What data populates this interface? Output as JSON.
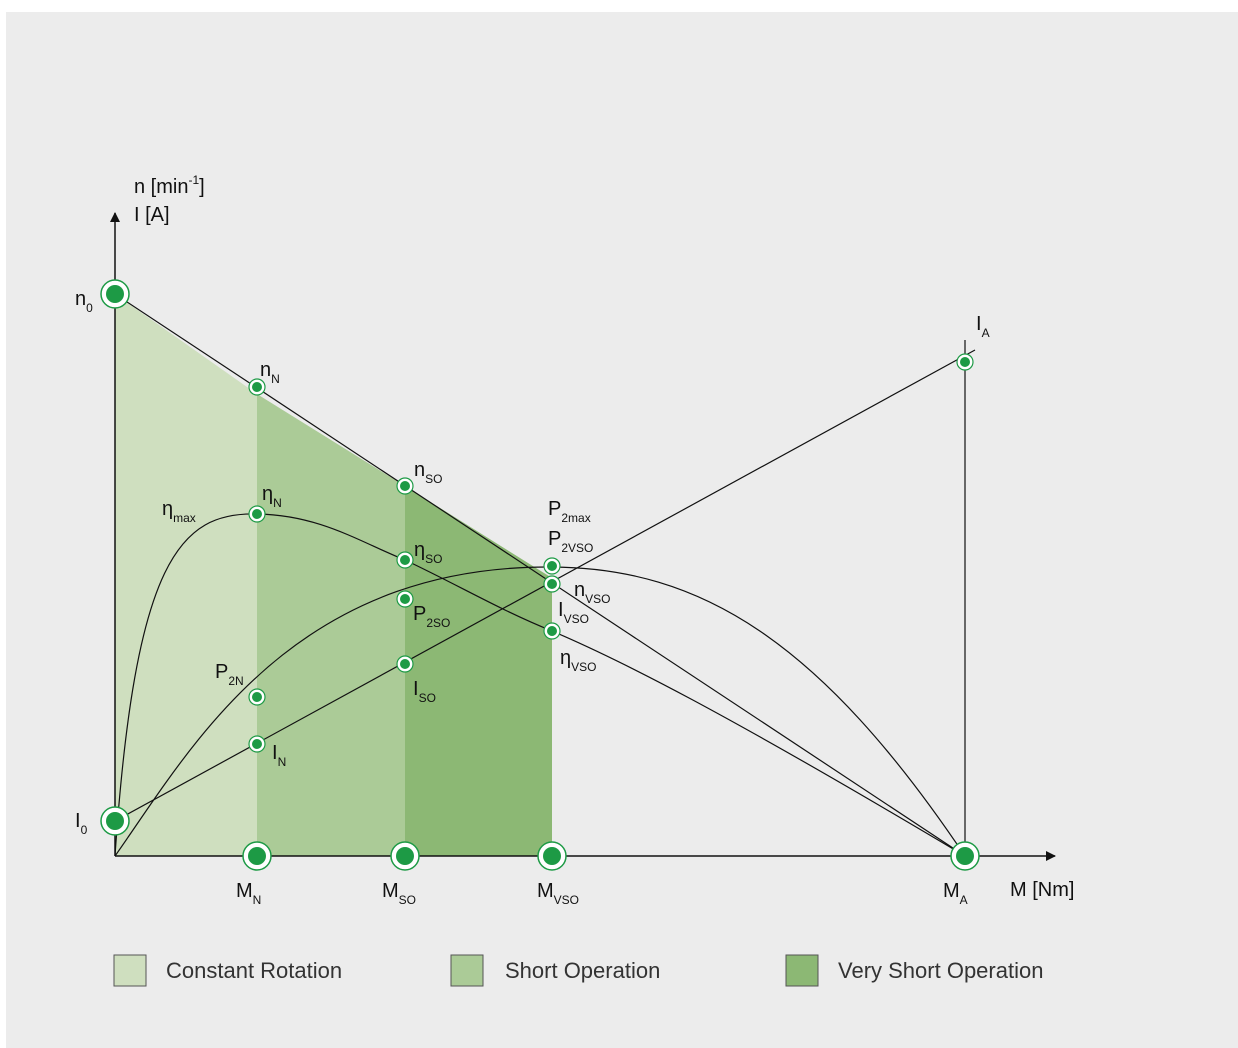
{
  "axes": {
    "y_title_line1": "n [min",
    "y_title_exp": "-1",
    "y_title_close": "]",
    "y_title_line2": "I [A]",
    "x_title": "M [Nm]"
  },
  "labels": {
    "n0": {
      "main": "n",
      "sub": "0"
    },
    "nN": {
      "main": "n",
      "sub": "N"
    },
    "nSO": {
      "main": "n",
      "sub": "SO"
    },
    "nVSO": {
      "main": "n",
      "sub": "VSO"
    },
    "eta_max": {
      "main": "η",
      "sub": "max"
    },
    "etaN": {
      "main": "η",
      "sub": "N"
    },
    "etaSO": {
      "main": "η",
      "sub": "SO"
    },
    "etaVSO": {
      "main": "η",
      "sub": "VSO"
    },
    "P2max": {
      "main": "P",
      "sub": "2max"
    },
    "P2VSO": {
      "main": "P",
      "sub": "2VSO"
    },
    "P2SO": {
      "main": "P",
      "sub": "2SO"
    },
    "P2N": {
      "main": "P",
      "sub": "2N"
    },
    "IA": {
      "main": "I",
      "sub": "A"
    },
    "IVSO": {
      "main": "I",
      "sub": "VSO"
    },
    "ISO": {
      "main": "I",
      "sub": "SO"
    },
    "IN": {
      "main": "I",
      "sub": "N"
    },
    "I0": {
      "main": "I",
      "sub": "0"
    },
    "MN": {
      "main": "M",
      "sub": "N"
    },
    "MSO": {
      "main": "M",
      "sub": "SO"
    },
    "MVSO": {
      "main": "M",
      "sub": "VSO"
    },
    "MA": {
      "main": "M",
      "sub": "A"
    }
  },
  "legend": [
    {
      "label": "Constant Rotation",
      "color": "#cfdfbf"
    },
    {
      "label": "Short Operation",
      "color": "#abcb97"
    },
    {
      "label": "Very Short Operation",
      "color": "#8cb874"
    }
  ],
  "colors": {
    "panel_background": "#ececec",
    "marker_green": "#1d9a45",
    "zone_constant_rotation": "#cfdfbf",
    "zone_short_operation": "#abcb97",
    "zone_very_short_operation": "#8cb874"
  }
}
